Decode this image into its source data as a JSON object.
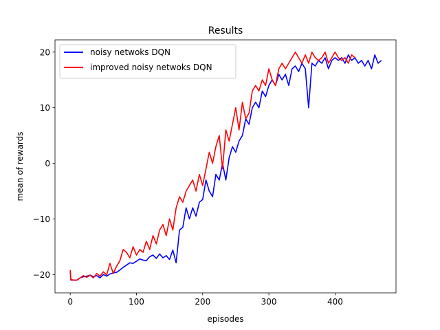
{
  "chart_data": {
    "type": "line",
    "title": "Results",
    "xlabel": "episodes",
    "ylabel": "mean of rewards",
    "xlim": [
      -23,
      492
    ],
    "ylim": [
      -23.3,
      22.2
    ],
    "xticks": [
      0,
      100,
      200,
      300,
      400
    ],
    "yticks": [
      -20,
      -10,
      0,
      10,
      20
    ],
    "grid": false,
    "legend_position": "top-left",
    "series": [
      {
        "name": "noisy netwoks DQN",
        "color": "#0000ff",
        "x": [
          0,
          1,
          2,
          5,
          10,
          15,
          20,
          25,
          30,
          35,
          40,
          45,
          50,
          55,
          60,
          65,
          70,
          75,
          80,
          85,
          90,
          95,
          100,
          105,
          110,
          115,
          120,
          125,
          130,
          135,
          140,
          145,
          150,
          155,
          160,
          165,
          170,
          175,
          180,
          185,
          190,
          195,
          200,
          205,
          210,
          215,
          220,
          225,
          230,
          235,
          240,
          245,
          250,
          255,
          260,
          265,
          270,
          275,
          280,
          285,
          290,
          295,
          300,
          305,
          310,
          315,
          320,
          325,
          330,
          335,
          340,
          345,
          350,
          355,
          360,
          365,
          370,
          375,
          380,
          385,
          390,
          395,
          400,
          405,
          410,
          415,
          420,
          425,
          430,
          435,
          440,
          445,
          450,
          455,
          460,
          465,
          470
        ],
        "y": [
          -19.5,
          -21,
          -21,
          -21,
          -21,
          -20.6,
          -20.4,
          -20.3,
          -20.1,
          -20.4,
          -20.2,
          -20.6,
          -20,
          -20.3,
          -19.9,
          -19.7,
          -19.6,
          -19.2,
          -18.7,
          -18.3,
          -17.9,
          -18,
          -17.6,
          -17.2,
          -17.4,
          -17.5,
          -16.8,
          -16.5,
          -17.1,
          -16.3,
          -17,
          -16.6,
          -17.3,
          -15.6,
          -17.9,
          -12,
          -11.5,
          -8,
          -10,
          -8,
          -9.5,
          -7,
          -6.5,
          -3,
          -5,
          -6,
          -2,
          -3,
          0,
          -3,
          1,
          3,
          2,
          4,
          5,
          8,
          7,
          10,
          11,
          10,
          13,
          12,
          14,
          15,
          14,
          16,
          15,
          16,
          14,
          17,
          17.5,
          16.5,
          18,
          17,
          10,
          18,
          17.5,
          18.5,
          18,
          19,
          17,
          18.5,
          19,
          18.5,
          19,
          18,
          19.5,
          18.5,
          19,
          18,
          18.5,
          17.5,
          18.5,
          17,
          19.5,
          18,
          18.5
        ]
      },
      {
        "name": "improved noisy netwoks DQN",
        "color": "#ff0000",
        "x": [
          0,
          1,
          2,
          5,
          10,
          15,
          20,
          25,
          30,
          35,
          40,
          45,
          50,
          55,
          60,
          65,
          70,
          75,
          80,
          85,
          90,
          95,
          100,
          105,
          110,
          115,
          120,
          125,
          130,
          135,
          140,
          145,
          150,
          155,
          160,
          165,
          170,
          175,
          180,
          185,
          190,
          195,
          200,
          205,
          210,
          215,
          220,
          225,
          230,
          235,
          240,
          245,
          250,
          255,
          260,
          265,
          270,
          275,
          280,
          285,
          290,
          295,
          300,
          305,
          310,
          315,
          320,
          325,
          330,
          335,
          340,
          345,
          350,
          355,
          360,
          365,
          370,
          375,
          380,
          385,
          390,
          395,
          400,
          405,
          410,
          415,
          420,
          425,
          430
        ],
        "y": [
          -19.2,
          -21,
          -20.9,
          -21,
          -21,
          -20.6,
          -20.2,
          -20.5,
          -20.1,
          -20.6,
          -19.8,
          -20.3,
          -19.5,
          -20.1,
          -18,
          -19.8,
          -18.5,
          -17.5,
          -15.5,
          -16,
          -17,
          -15,
          -16.5,
          -15.5,
          -16,
          -14,
          -15.5,
          -13,
          -14.5,
          -12,
          -11,
          -13,
          -10,
          -12,
          -8,
          -6,
          -7,
          -5,
          -4,
          -3,
          -5,
          -2,
          -4,
          -1,
          2,
          0,
          3,
          5,
          -1,
          6,
          4,
          7,
          10,
          6,
          11,
          8,
          9,
          13,
          14,
          13,
          15,
          14,
          17,
          15,
          14,
          17,
          18,
          17,
          18,
          19,
          20,
          19,
          18,
          19.5,
          18,
          20,
          19,
          18.5,
          19,
          20,
          18,
          19,
          20,
          19,
          18.5,
          19,
          18,
          19.5,
          19
        ]
      }
    ]
  }
}
